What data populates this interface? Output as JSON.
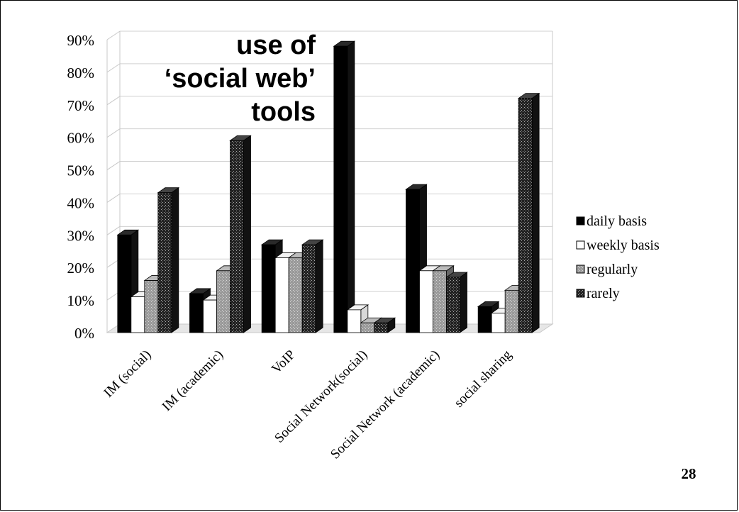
{
  "page_number": "28",
  "chart_data": {
    "type": "bar",
    "title_lines": [
      "use of",
      "‘social web’",
      "tools"
    ],
    "categories": [
      "IM (social)",
      "IM (academic)",
      "VoIP",
      "Social Network(social)",
      "Social Network (academic)",
      "social sharing"
    ],
    "series": [
      {
        "name": "daily basis",
        "values": [
          30,
          12,
          27,
          88,
          44,
          8
        ],
        "fill": "#000000",
        "pattern": "solid"
      },
      {
        "name": "weekly basis",
        "values": [
          11,
          10,
          23,
          7,
          19,
          6
        ],
        "fill": "#ffffff",
        "pattern": "solid"
      },
      {
        "name": "regularly",
        "values": [
          16,
          19,
          23,
          3,
          19,
          13
        ],
        "fill": "#999999",
        "pattern": "dots-light"
      },
      {
        "name": "rarely",
        "values": [
          43,
          59,
          27,
          3,
          17,
          72
        ],
        "fill": "#333333",
        "pattern": "dots-dark"
      }
    ],
    "ylim": [
      0,
      90
    ],
    "y_ticks": [
      "0%",
      "10%",
      "20%",
      "30%",
      "40%",
      "50%",
      "60%",
      "70%",
      "80%",
      "90%"
    ],
    "legend_position": "right",
    "grid": true
  }
}
